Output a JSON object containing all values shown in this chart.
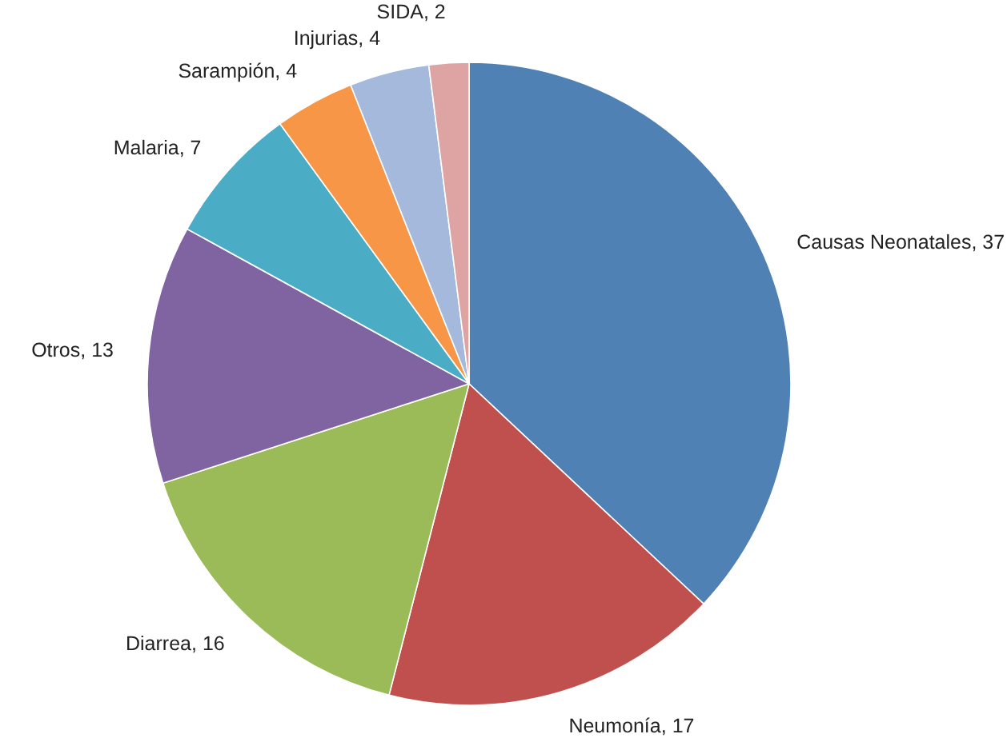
{
  "chart_data": {
    "type": "pie",
    "categories": [
      "Causas Neonatales",
      "Neumonía",
      "Diarrea",
      "Otros",
      "Malaria",
      "Sarampión",
      "Injurias",
      "SIDA"
    ],
    "values": [
      37,
      17,
      16,
      13,
      7,
      4,
      4,
      2
    ],
    "colors": [
      "#4f81b4",
      "#c0504d",
      "#9bbb59",
      "#8064a2",
      "#4bacc6",
      "#f79646",
      "#a5b9dc",
      "#dea3a3"
    ],
    "value_labels": [
      ", 37",
      ", 17",
      ", 16",
      ", 13",
      ", 7",
      ", 4",
      ", 4",
      ", 2"
    ]
  }
}
